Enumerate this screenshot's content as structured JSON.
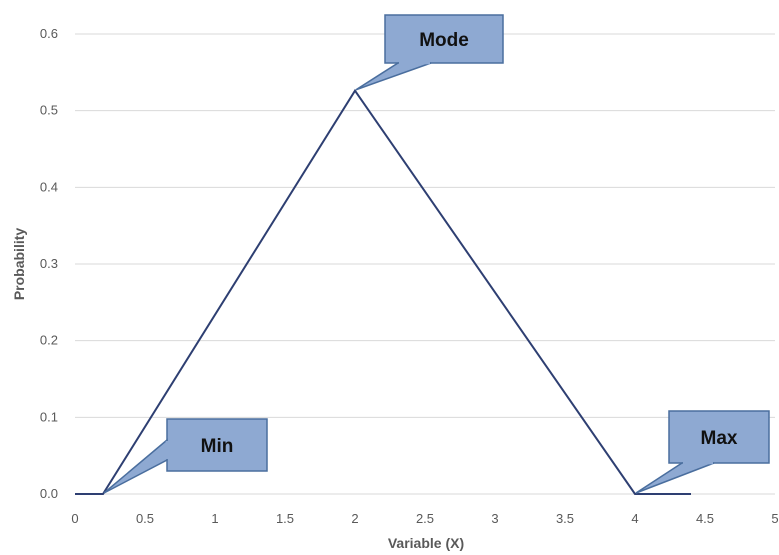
{
  "chart_data": {
    "type": "line",
    "title": "",
    "xlabel": "Variable (X)",
    "ylabel": "Probability",
    "xlim": [
      0,
      5
    ],
    "ylim": [
      0,
      0.6
    ],
    "x_ticks": [
      0,
      0.5,
      1,
      1.5,
      2,
      2.5,
      3,
      3.5,
      4,
      4.5,
      5
    ],
    "x_tick_labels": [
      "0",
      "0.5",
      "1",
      "1.5",
      "2",
      "2.5",
      "3",
      "3.5",
      "4",
      "4.5",
      "5"
    ],
    "y_ticks": [
      0,
      0.1,
      0.2,
      0.3,
      0.4,
      0.5,
      0.6
    ],
    "y_tick_labels": [
      "0.0",
      "0.1",
      "0.2",
      "0.3",
      "0.4",
      "0.5",
      "0.6"
    ],
    "grid": "horizontal",
    "series": [
      {
        "x": [
          0,
          0.2,
          2,
          4,
          4.4
        ],
        "y": [
          0,
          0,
          0.526,
          0,
          0
        ]
      }
    ],
    "annotations": [
      {
        "text": "Mode",
        "x": 2,
        "y": 0.526
      },
      {
        "text": "Min",
        "x": 0.2,
        "y": 0
      },
      {
        "text": "Max",
        "x": 4,
        "y": 0
      }
    ],
    "colors": {
      "line": "#2e3f72",
      "grid": "#d9d9d9",
      "callout_fill": "#8ea9d2",
      "callout_border": "#4a6e9e"
    }
  }
}
